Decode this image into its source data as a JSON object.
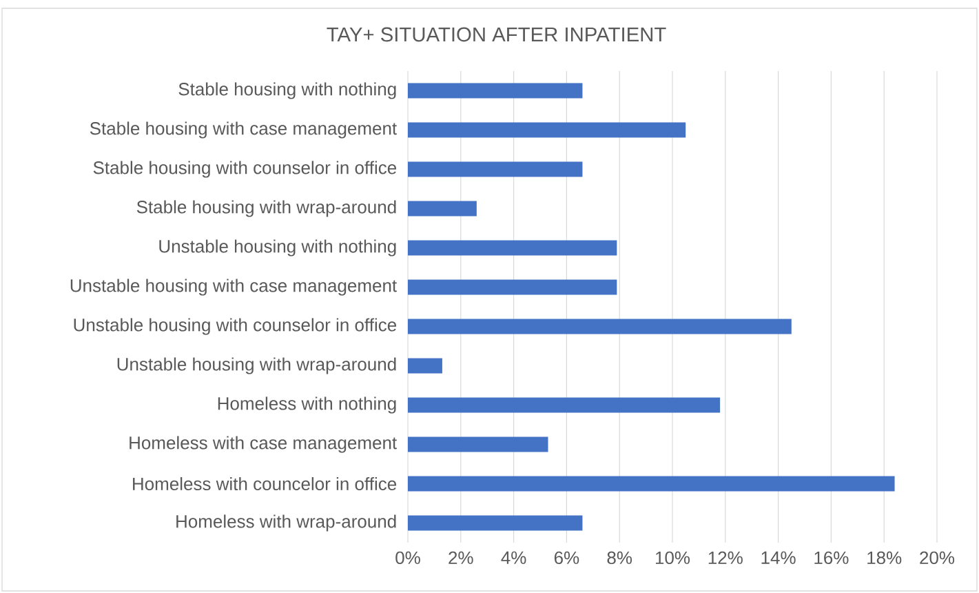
{
  "chart_data": {
    "type": "bar",
    "orientation": "horizontal",
    "title": "TAY+ SITUATION AFTER INPATIENT",
    "categories": [
      "Stable housing with nothing",
      "Stable housing with case management",
      "Stable housing with counselor in office",
      "Stable housing with wrap-around",
      "Unstable housing with nothing",
      "Unstable housing with case management",
      "Unstable housing with counselor in office",
      "Unstable housing with wrap-around",
      "Homeless with nothing",
      "Homeless with case management",
      "Homeless with councelor in office",
      "Homeless with wrap-around"
    ],
    "values": [
      6.6,
      10.5,
      6.6,
      2.6,
      7.9,
      7.9,
      14.5,
      1.3,
      11.8,
      5.3,
      18.4,
      6.6
    ],
    "color": "#4472c4",
    "xlim": [
      0,
      20
    ],
    "xticks": [
      {
        "value": 0,
        "label": "0%"
      },
      {
        "value": 2,
        "label": "2%"
      },
      {
        "value": 4,
        "label": "4%"
      },
      {
        "value": 6,
        "label": "6%"
      },
      {
        "value": 8,
        "label": "8%"
      },
      {
        "value": 10,
        "label": "10%"
      },
      {
        "value": 12,
        "label": "12%"
      },
      {
        "value": 14,
        "label": "14%"
      },
      {
        "value": 16,
        "label": "16%"
      },
      {
        "value": 18,
        "label": "18%"
      },
      {
        "value": 20,
        "label": "20%"
      }
    ],
    "grid": "x"
  }
}
